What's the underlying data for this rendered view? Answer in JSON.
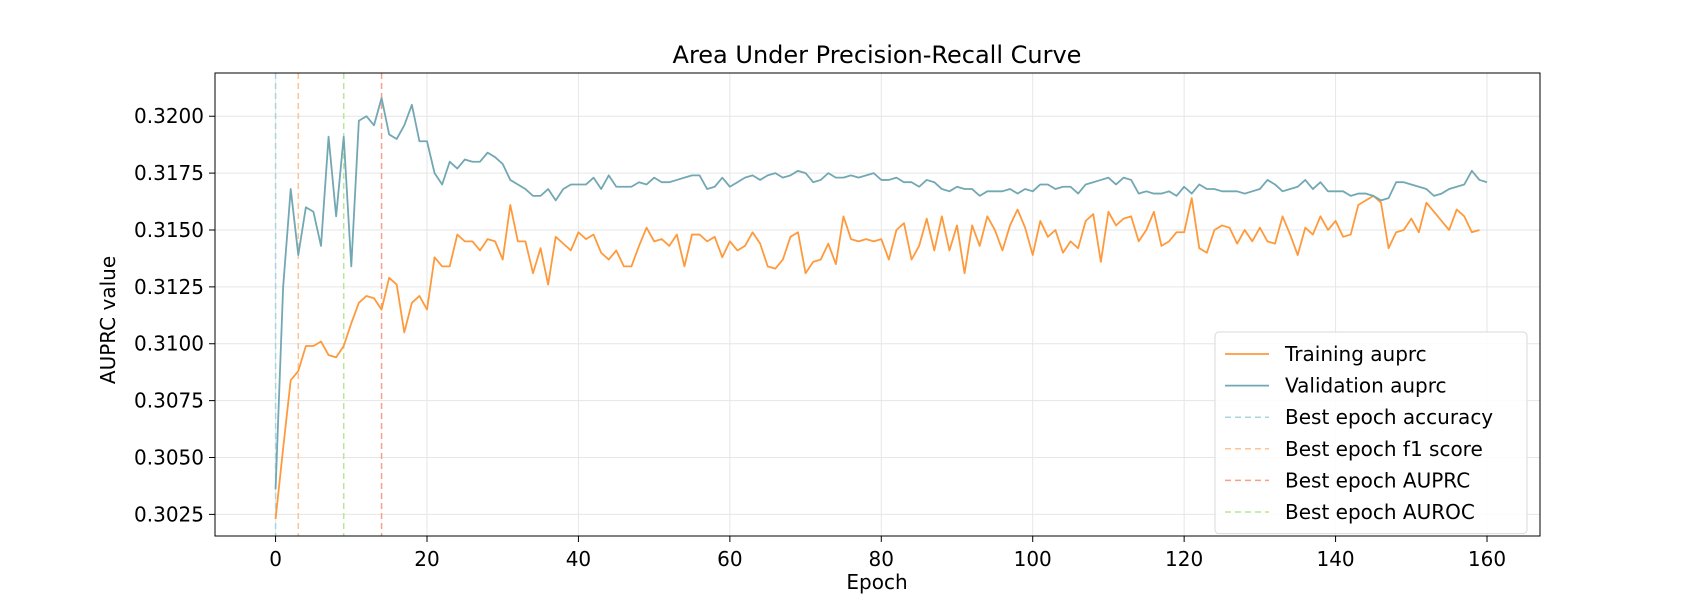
{
  "chart_data": {
    "type": "line",
    "title": "Area Under Precision-Recall Curve",
    "xlabel": "Epoch",
    "ylabel": "AUPRC value",
    "xlim": [
      -8,
      167
    ],
    "ylim": [
      0.30155,
      0.3219
    ],
    "x_ticks": [
      0,
      20,
      40,
      60,
      80,
      100,
      120,
      140,
      160
    ],
    "x_tick_labels": [
      "0",
      "20",
      "40",
      "60",
      "80",
      "100",
      "120",
      "140",
      "160"
    ],
    "y_ticks": [
      0.3025,
      0.305,
      0.3075,
      0.31,
      0.3125,
      0.315,
      0.3175,
      0.32
    ],
    "y_tick_labels": [
      "0.3025",
      "0.3050",
      "0.3075",
      "0.3100",
      "0.3125",
      "0.3150",
      "0.3175",
      "0.3200"
    ],
    "grid": true,
    "legend_position": "lower-right",
    "series": [
      {
        "name": "Training auprc",
        "color": "#ff9a3c",
        "values": [
          0.3023,
          0.3054,
          0.3084,
          0.3088,
          0.3099,
          0.3099,
          0.3101,
          0.3095,
          0.3094,
          0.3099,
          0.3109,
          0.3118,
          0.3121,
          0.312,
          0.3115,
          0.3129,
          0.3126,
          0.3105,
          0.3118,
          0.3121,
          0.3115,
          0.3138,
          0.3134,
          0.3134,
          0.3148,
          0.3145,
          0.3145,
          0.3141,
          0.3146,
          0.3145,
          0.3137,
          0.3161,
          0.3145,
          0.3145,
          0.3131,
          0.3142,
          0.3126,
          0.3147,
          0.3144,
          0.3141,
          0.3149,
          0.3146,
          0.3148,
          0.314,
          0.3137,
          0.3141,
          0.3134,
          0.3134,
          0.3143,
          0.3151,
          0.3145,
          0.3146,
          0.3143,
          0.3148,
          0.3134,
          0.3148,
          0.3148,
          0.3145,
          0.3147,
          0.3138,
          0.3145,
          0.3141,
          0.3143,
          0.3149,
          0.3144,
          0.3134,
          0.3133,
          0.3137,
          0.3147,
          0.3149,
          0.3131,
          0.3136,
          0.3137,
          0.3144,
          0.3135,
          0.3156,
          0.3146,
          0.3145,
          0.3146,
          0.3145,
          0.3146,
          0.3137,
          0.315,
          0.3153,
          0.3137,
          0.3143,
          0.3155,
          0.3141,
          0.3156,
          0.3141,
          0.3152,
          0.3131,
          0.3152,
          0.3143,
          0.3156,
          0.315,
          0.3141,
          0.3152,
          0.3159,
          0.3151,
          0.3139,
          0.3154,
          0.3147,
          0.315,
          0.314,
          0.3145,
          0.3142,
          0.3154,
          0.3157,
          0.3136,
          0.3158,
          0.3152,
          0.3155,
          0.3156,
          0.3145,
          0.315,
          0.3158,
          0.3143,
          0.3145,
          0.3149,
          0.3149,
          0.3164,
          0.3142,
          0.314,
          0.315,
          0.3152,
          0.3151,
          0.3144,
          0.315,
          0.3145,
          0.3151,
          0.3145,
          0.3144,
          0.3156,
          0.3148,
          0.3139,
          0.3151,
          0.3148,
          0.3156,
          0.315,
          0.3154,
          0.3147,
          0.3148,
          0.3161,
          0.3163,
          0.3165,
          0.3162,
          0.3142,
          0.3149,
          0.315,
          0.3155,
          0.3149,
          0.3162,
          0.3158,
          0.3154,
          0.315,
          0.3159,
          0.3156,
          0.3149,
          0.315
        ]
      },
      {
        "name": "Validation auprc",
        "color": "#72a8b3",
        "values": [
          0.3036,
          0.3125,
          0.3168,
          0.3139,
          0.316,
          0.3158,
          0.3143,
          0.3191,
          0.3156,
          0.3191,
          0.3134,
          0.3198,
          0.32,
          0.3196,
          0.3208,
          0.3192,
          0.319,
          0.3196,
          0.3205,
          0.3189,
          0.3189,
          0.3175,
          0.317,
          0.318,
          0.3177,
          0.3181,
          0.318,
          0.318,
          0.3184,
          0.3182,
          0.3179,
          0.3172,
          0.317,
          0.3168,
          0.3165,
          0.3165,
          0.3168,
          0.3163,
          0.3168,
          0.317,
          0.317,
          0.317,
          0.3173,
          0.3168,
          0.3174,
          0.3169,
          0.3169,
          0.3169,
          0.3171,
          0.317,
          0.3173,
          0.3171,
          0.3171,
          0.3172,
          0.3173,
          0.3174,
          0.3174,
          0.3168,
          0.3169,
          0.3173,
          0.3169,
          0.3171,
          0.3173,
          0.3174,
          0.3172,
          0.3174,
          0.3175,
          0.3173,
          0.3174,
          0.3176,
          0.3175,
          0.3171,
          0.3172,
          0.3175,
          0.3173,
          0.3173,
          0.3174,
          0.3173,
          0.3174,
          0.3175,
          0.3172,
          0.3172,
          0.3173,
          0.3171,
          0.3171,
          0.3169,
          0.3172,
          0.3171,
          0.3168,
          0.3167,
          0.3169,
          0.3168,
          0.3168,
          0.3165,
          0.3167,
          0.3167,
          0.3167,
          0.3168,
          0.3166,
          0.3168,
          0.3167,
          0.317,
          0.317,
          0.3168,
          0.3169,
          0.3169,
          0.3166,
          0.317,
          0.3171,
          0.3172,
          0.3173,
          0.317,
          0.3173,
          0.3172,
          0.3166,
          0.3167,
          0.3166,
          0.3166,
          0.3167,
          0.3165,
          0.3169,
          0.3166,
          0.317,
          0.3168,
          0.3168,
          0.3167,
          0.3167,
          0.3167,
          0.3166,
          0.3167,
          0.3168,
          0.3172,
          0.317,
          0.3167,
          0.3168,
          0.3169,
          0.3172,
          0.3168,
          0.3171,
          0.3167,
          0.3167,
          0.3167,
          0.3165,
          0.3166,
          0.3166,
          0.3165,
          0.3163,
          0.3164,
          0.3171,
          0.3171,
          0.317,
          0.3169,
          0.3168,
          0.3165,
          0.3166,
          0.3168,
          0.3169,
          0.317,
          0.3176,
          0.3172,
          0.3171
        ]
      }
    ],
    "vlines": [
      {
        "name": "Best epoch accuracy",
        "x": 0,
        "color": "#a8d5db"
      },
      {
        "name": "Best epoch f1 score",
        "x": 3,
        "color": "#ffc494"
      },
      {
        "name": "Best epoch AUPRC",
        "x": 14,
        "color": "#f5a089"
      },
      {
        "name": "Best epoch AUROC",
        "x": 9,
        "color": "#b8e69a"
      }
    ],
    "legend_order": [
      "Training auprc",
      "Validation auprc",
      "Best epoch accuracy",
      "Best epoch f1 score",
      "Best epoch AUPRC",
      "Best epoch AUROC"
    ]
  }
}
